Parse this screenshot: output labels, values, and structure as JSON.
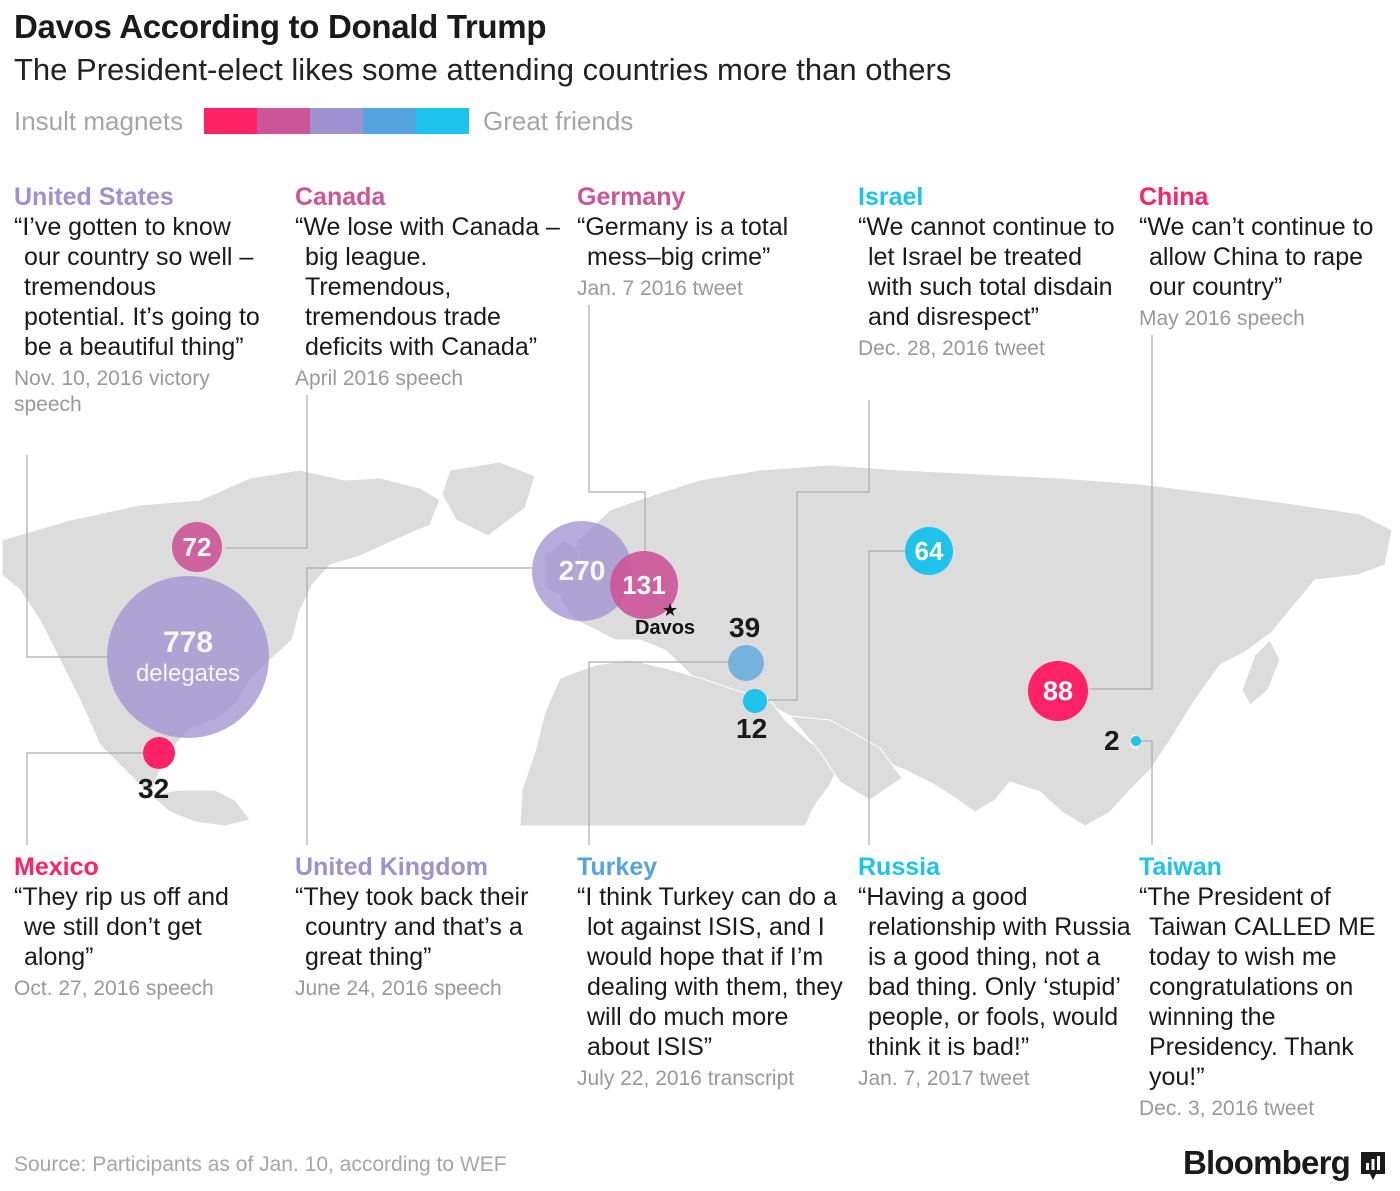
{
  "header": {
    "title": "Davos According to Donald Trump",
    "subtitle": "The President-elect likes some attending countries more than others"
  },
  "legend": {
    "left_label": "Insult magnets",
    "right_label": "Great friends",
    "scale_colors": [
      "#ff2266",
      "#cc5599",
      "#9f90d0",
      "#55a4e0",
      "#1dc3eb"
    ]
  },
  "countries": [
    {
      "name": "United States",
      "color": "#9f90d0",
      "quote": "“I’ve gotten to know our country so well – tremendous potential. It’s going to be a beautiful thing”",
      "date": "Nov. 10, 2016 victory speech",
      "delegates": 778,
      "unit": "delegates"
    },
    {
      "name": "Canada",
      "color": "#cc5599",
      "quote": "“We lose with Canada – big league. Tremendous, tremendous trade deficits with Canada”",
      "date": "April 2016 speech",
      "delegates": 72
    },
    {
      "name": "Germany",
      "color": "#cc5599",
      "quote": "“Germany is a total mess–big crime”",
      "date": "Jan. 7 2016 tweet",
      "delegates": 131
    },
    {
      "name": "Israel",
      "color": "#1dc3eb",
      "quote": "“We cannot continue to let Israel be treated with such total disdain and disrespect”",
      "date": "Dec. 28, 2016 tweet",
      "delegates": 12
    },
    {
      "name": "China",
      "color": "#ff2266",
      "quote": "“We can’t continue to allow China to rape our country”",
      "date": "May 2016 speech",
      "delegates": 88
    },
    {
      "name": "Mexico",
      "color": "#ff2266",
      "quote": "“They rip us off and we still don’t get along”",
      "date": "Oct. 27, 2016 speech",
      "delegates": 32
    },
    {
      "name": "United Kingdom",
      "color": "#9f90d0",
      "quote": "“They took back their country and that’s a great thing”",
      "date": "June 24, 2016 speech",
      "delegates": 270
    },
    {
      "name": "Turkey",
      "color": "#55a4e0",
      "quote": "“I think Turkey can do a lot against ISIS, and I would hope that if I’m dealing with them, they will do much more about ISIS”",
      "date": "July 22, 2016 transcript",
      "delegates": 39
    },
    {
      "name": "Russia",
      "color": "#1dc3eb",
      "quote": "“Having a good relationship with Russia is a good thing, not a bad thing. Only ‘stupid’ people, or fools, would think it is bad!”",
      "date": "Jan. 7, 2017 tweet",
      "delegates": 64
    },
    {
      "name": "Taiwan",
      "color": "#1dc3eb",
      "quote": "“The President of Taiwan CALLED ME today to wish me congratulations on winning the Presidency. Thank you!”",
      "date": "Dec. 3, 2016 tweet",
      "delegates": 2
    }
  ],
  "map": {
    "location_label": "Davos"
  },
  "footer": {
    "source": "Source: Participants as of Jan. 10, according to WEF",
    "brand": "Bloomberg"
  }
}
